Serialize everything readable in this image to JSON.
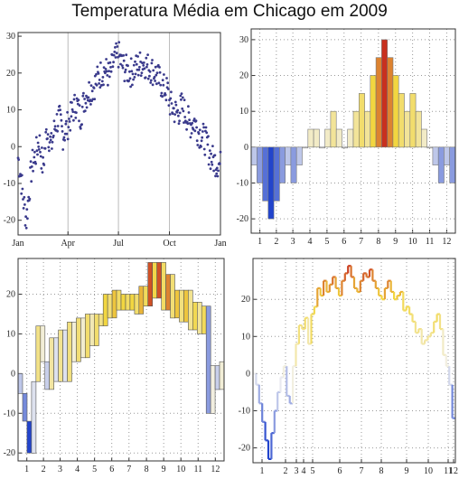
{
  "title": "Temperatura Média em Chicago em 2009",
  "colors": {
    "points": "#3a3a8c",
    "cold": "#2244cc",
    "mid": "#f2f2f2",
    "warm": "#f2d640",
    "hot": "#c8301f"
  },
  "chart_data": [
    {
      "type": "scatter",
      "title": "",
      "xlim": [
        0,
        365
      ],
      "ylim": [
        -24,
        31
      ],
      "x_ticks": [
        {
          "label": "Jan",
          "day": 0
        },
        {
          "label": "Apr",
          "day": 90
        },
        {
          "label": "Jul",
          "day": 181
        },
        {
          "label": "Oct",
          "day": 273
        },
        {
          "label": "Jan",
          "day": 365
        }
      ],
      "y_ticks": [
        -20,
        -10,
        0,
        10,
        20,
        30
      ],
      "grid": "vertical lines at Apr, Jul, Oct",
      "anchors": [
        [
          0,
          -3
        ],
        [
          5,
          -8
        ],
        [
          10,
          -15
        ],
        [
          15,
          -20
        ],
        [
          20,
          -12
        ],
        [
          25,
          -5
        ],
        [
          32,
          -2
        ],
        [
          38,
          2
        ],
        [
          45,
          -6
        ],
        [
          52,
          5
        ],
        [
          60,
          0
        ],
        [
          67,
          6
        ],
        [
          74,
          8
        ],
        [
          81,
          3
        ],
        [
          90,
          6
        ],
        [
          97,
          9
        ],
        [
          105,
          12
        ],
        [
          112,
          8
        ],
        [
          120,
          13
        ],
        [
          127,
          15
        ],
        [
          135,
          16
        ],
        [
          142,
          18
        ],
        [
          150,
          20
        ],
        [
          157,
          21
        ],
        [
          165,
          19
        ],
        [
          172,
          23
        ],
        [
          181,
          25
        ],
        [
          188,
          22
        ],
        [
          195,
          21
        ],
        [
          202,
          20
        ],
        [
          210,
          21
        ],
        [
          217,
          22
        ],
        [
          225,
          23
        ],
        [
          232,
          22
        ],
        [
          240,
          21
        ],
        [
          247,
          20
        ],
        [
          255,
          18
        ],
        [
          262,
          16
        ],
        [
          270,
          15
        ],
        [
          273,
          12
        ],
        [
          280,
          10
        ],
        [
          288,
          9
        ],
        [
          295,
          11
        ],
        [
          302,
          9
        ],
        [
          310,
          6
        ],
        [
          318,
          7
        ],
        [
          325,
          4
        ],
        [
          332,
          3
        ],
        [
          340,
          1
        ],
        [
          348,
          -3
        ],
        [
          355,
          -4
        ],
        [
          365,
          -5
        ]
      ]
    },
    {
      "type": "bar",
      "title": "",
      "ylim": [
        -24,
        33
      ],
      "y_ticks": [
        -20,
        -10,
        0,
        10,
        20,
        30
      ],
      "x_ticks": [
        "1",
        "2",
        "3",
        "4",
        "5",
        "6",
        "7",
        "8",
        "9",
        "10",
        "11",
        "12"
      ],
      "values": [
        -5,
        -10,
        -15,
        -20,
        -15,
        -10,
        -5,
        -10,
        -5,
        0,
        5,
        5,
        0,
        5,
        10,
        5,
        0,
        5,
        10,
        15,
        10,
        20,
        25,
        30,
        25,
        20,
        15,
        10,
        15,
        10,
        5,
        0,
        -5,
        -10,
        -5,
        -10
      ]
    },
    {
      "type": "bar",
      "title": "",
      "ylim": [
        -22,
        29
      ],
      "y_ticks": [
        -20,
        -10,
        0,
        10,
        20
      ],
      "x_ticks": [
        "1",
        "2",
        "3",
        "4",
        "5",
        "6",
        "7",
        "8",
        "9",
        "10",
        "11",
        "12"
      ],
      "values": [
        -5,
        -12,
        -20,
        -2,
        12,
        3,
        -4,
        9,
        -2,
        11,
        -2,
        13,
        3,
        14,
        4,
        15,
        7,
        15,
        12,
        20,
        14,
        21,
        16,
        20,
        16,
        20,
        15,
        22,
        17,
        28,
        19,
        28,
        16,
        25,
        14,
        21,
        13,
        21,
        11,
        18,
        10,
        17,
        -10,
        2,
        -4,
        3
      ]
    },
    {
      "type": "line",
      "title": "",
      "ylim": [
        -24,
        31
      ],
      "y_ticks": [
        -20,
        -10,
        0,
        10,
        20
      ],
      "x_ticks": [
        "1",
        "2",
        "3",
        "4",
        "5",
        "6",
        "7",
        "8",
        "9",
        "10",
        "11",
        "12"
      ],
      "note_x_ticks": "last two labels overlap in the original and read as 112",
      "values": [
        0,
        -3,
        -8,
        -13,
        -18,
        -23,
        -16,
        -10,
        -5,
        -1,
        2,
        -6,
        -8,
        2,
        8,
        13,
        12,
        15,
        8,
        16,
        18,
        23,
        21,
        25,
        22,
        24,
        26,
        23,
        21,
        25,
        27,
        29,
        26,
        23,
        22,
        25,
        27,
        26,
        28,
        25,
        23,
        21,
        20,
        23,
        25,
        22,
        20,
        21,
        22,
        17,
        18,
        16,
        14,
        11,
        12,
        8,
        9,
        10,
        11,
        14,
        16,
        12,
        5,
        2,
        -3,
        -12
      ]
    }
  ]
}
